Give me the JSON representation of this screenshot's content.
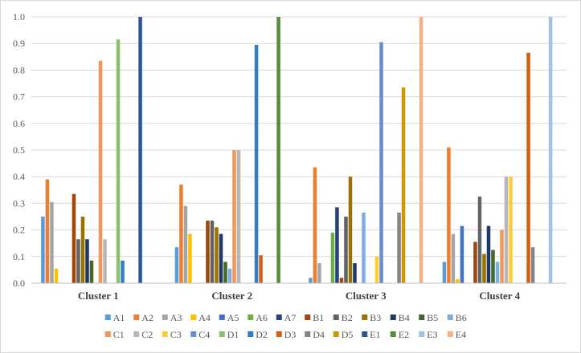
{
  "chart_data": {
    "type": "bar",
    "categories": [
      "Cluster 1",
      "Cluster 2",
      "Cluster 3",
      "Cluster 4"
    ],
    "ylim": [
      0,
      1.0
    ],
    "yticks": [
      "0.0",
      "0.1",
      "0.2",
      "0.3",
      "0.4",
      "0.5",
      "0.6",
      "0.7",
      "0.8",
      "0.9",
      "1.0"
    ],
    "grid": "horizontal",
    "legend_position": "bottom",
    "series": [
      {
        "name": "A1",
        "color": "#5B9BD5",
        "values": [
          0.25,
          0.135,
          0.02,
          0.08
        ]
      },
      {
        "name": "A2",
        "color": "#ED7D31",
        "values": [
          0.39,
          0.37,
          0.435,
          0.51
        ]
      },
      {
        "name": "A3",
        "color": "#A5A5A5",
        "values": [
          0.305,
          0.29,
          0.075,
          0.185
        ]
      },
      {
        "name": "A4",
        "color": "#FFC000",
        "values": [
          0.055,
          0.185,
          0.0,
          0.015
        ]
      },
      {
        "name": "A5",
        "color": "#4472C4",
        "values": [
          0.0,
          0.0,
          0.0,
          0.215
        ]
      },
      {
        "name": "A6",
        "color": "#70AD47",
        "values": [
          0.0,
          0.0,
          0.19,
          0.0
        ]
      },
      {
        "name": "A7",
        "color": "#264478",
        "values": [
          0.0,
          0.0,
          0.285,
          0.0
        ]
      },
      {
        "name": "B1",
        "color": "#9E480E",
        "values": [
          0.335,
          0.235,
          0.02,
          0.155
        ]
      },
      {
        "name": "B2",
        "color": "#636363",
        "values": [
          0.165,
          0.235,
          0.25,
          0.325
        ]
      },
      {
        "name": "B3",
        "color": "#997300",
        "values": [
          0.25,
          0.21,
          0.4,
          0.11
        ]
      },
      {
        "name": "B4",
        "color": "#203864",
        "values": [
          0.165,
          0.185,
          0.075,
          0.215
        ]
      },
      {
        "name": "B5",
        "color": "#43682B",
        "values": [
          0.085,
          0.08,
          0.0,
          0.125
        ]
      },
      {
        "name": "B6",
        "color": "#7CAFDD",
        "values": [
          0.0,
          0.055,
          0.265,
          0.08
        ]
      },
      {
        "name": "C1",
        "color": "#F1975A",
        "values": [
          0.835,
          0.5,
          0.0,
          0.2
        ]
      },
      {
        "name": "C2",
        "color": "#B7B7B7",
        "values": [
          0.165,
          0.5,
          0.0,
          0.4
        ]
      },
      {
        "name": "C3",
        "color": "#FFCD33",
        "values": [
          0.0,
          0.0,
          0.1,
          0.4
        ]
      },
      {
        "name": "C4",
        "color": "#698ED0",
        "values": [
          0.0,
          0.0,
          0.905,
          0.0
        ]
      },
      {
        "name": "D1",
        "color": "#8CC168",
        "values": [
          0.915,
          0.0,
          0.0,
          0.0
        ]
      },
      {
        "name": "D2",
        "color": "#327DC2",
        "values": [
          0.085,
          0.895,
          0.0,
          0.0
        ]
      },
      {
        "name": "D3",
        "color": "#D26012",
        "values": [
          0.0,
          0.105,
          0.0,
          0.865
        ]
      },
      {
        "name": "D4",
        "color": "#848484",
        "values": [
          0.0,
          0.0,
          0.265,
          0.135
        ]
      },
      {
        "name": "D5",
        "color": "#CC9A00",
        "values": [
          0.0,
          0.0,
          0.735,
          0.0
        ]
      },
      {
        "name": "E1",
        "color": "#2E5597",
        "values": [
          1.0,
          0.0,
          0.0,
          0.0
        ]
      },
      {
        "name": "E2",
        "color": "#5A8C38",
        "values": [
          0.0,
          1.0,
          0.0,
          0.0
        ]
      },
      {
        "name": "E3",
        "color": "#9DC3E6",
        "values": [
          0.0,
          0.0,
          0.0,
          1.0
        ]
      },
      {
        "name": "E4",
        "color": "#F4B183",
        "values": [
          0.0,
          0.0,
          1.0,
          0.0
        ]
      }
    ]
  }
}
